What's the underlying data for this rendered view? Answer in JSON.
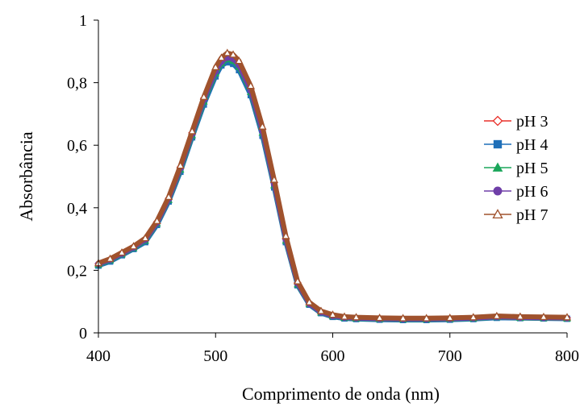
{
  "chart_data": {
    "type": "line",
    "xlabel": "Comprimento de onda (nm)",
    "ylabel": "Absorbância",
    "xlim": [
      400,
      800
    ],
    "ylim": [
      0,
      1
    ],
    "x_ticks": [
      400,
      500,
      600,
      700,
      800
    ],
    "x_tick_labels": [
      "400",
      "500",
      "600",
      "700",
      "800"
    ],
    "y_ticks": [
      0,
      0.2,
      0.4,
      0.6,
      0.8,
      1
    ],
    "y_tick_labels": [
      "0",
      "0,2",
      "0,4",
      "0,6",
      "0,8",
      "1"
    ],
    "grid": false,
    "legend_position": "right",
    "x": [
      400,
      410,
      420,
      430,
      440,
      450,
      460,
      470,
      480,
      490,
      500,
      505,
      510,
      515,
      520,
      530,
      540,
      550,
      560,
      570,
      580,
      590,
      600,
      610,
      620,
      640,
      660,
      680,
      700,
      720,
      740,
      760,
      780,
      800
    ],
    "series": [
      {
        "name": "pH 3",
        "color": "#e8302a",
        "marker": "diamond-open",
        "values": [
          0.221,
          0.235,
          0.255,
          0.275,
          0.3,
          0.355,
          0.43,
          0.53,
          0.64,
          0.75,
          0.84,
          0.87,
          0.885,
          0.88,
          0.86,
          0.78,
          0.65,
          0.48,
          0.3,
          0.16,
          0.095,
          0.068,
          0.056,
          0.05,
          0.048,
          0.046,
          0.045,
          0.045,
          0.046,
          0.048,
          0.052,
          0.05,
          0.049,
          0.048
        ]
      },
      {
        "name": "pH 4",
        "color": "#1f6fb8",
        "marker": "square",
        "values": [
          0.215,
          0.228,
          0.248,
          0.268,
          0.29,
          0.345,
          0.42,
          0.515,
          0.625,
          0.73,
          0.82,
          0.855,
          0.865,
          0.86,
          0.84,
          0.76,
          0.63,
          0.465,
          0.29,
          0.152,
          0.09,
          0.063,
          0.051,
          0.046,
          0.044,
          0.042,
          0.041,
          0.041,
          0.042,
          0.044,
          0.048,
          0.047,
          0.046,
          0.045
        ]
      },
      {
        "name": "pH 5",
        "color": "#1aa65a",
        "marker": "triangle",
        "values": [
          0.218,
          0.232,
          0.251,
          0.271,
          0.295,
          0.35,
          0.425,
          0.522,
          0.632,
          0.74,
          0.83,
          0.862,
          0.875,
          0.87,
          0.85,
          0.77,
          0.64,
          0.472,
          0.295,
          0.155,
          0.092,
          0.065,
          0.053,
          0.048,
          0.046,
          0.044,
          0.043,
          0.043,
          0.044,
          0.046,
          0.05,
          0.048,
          0.047,
          0.046
        ]
      },
      {
        "name": "pH 6",
        "color": "#6f3fa8",
        "marker": "circle",
        "values": [
          0.22,
          0.234,
          0.253,
          0.273,
          0.298,
          0.352,
          0.428,
          0.527,
          0.637,
          0.746,
          0.836,
          0.867,
          0.88,
          0.876,
          0.856,
          0.775,
          0.645,
          0.476,
          0.298,
          0.158,
          0.093,
          0.066,
          0.054,
          0.049,
          0.047,
          0.045,
          0.044,
          0.044,
          0.045,
          0.047,
          0.051,
          0.049,
          0.048,
          0.047
        ]
      },
      {
        "name": "pH 7",
        "color": "#a0522d",
        "marker": "triangle-open",
        "values": [
          0.223,
          0.237,
          0.257,
          0.277,
          0.303,
          0.358,
          0.435,
          0.535,
          0.645,
          0.755,
          0.85,
          0.88,
          0.895,
          0.89,
          0.87,
          0.79,
          0.66,
          0.49,
          0.31,
          0.165,
          0.098,
          0.07,
          0.058,
          0.052,
          0.05,
          0.048,
          0.047,
          0.047,
          0.048,
          0.05,
          0.054,
          0.052,
          0.051,
          0.05
        ]
      }
    ]
  }
}
